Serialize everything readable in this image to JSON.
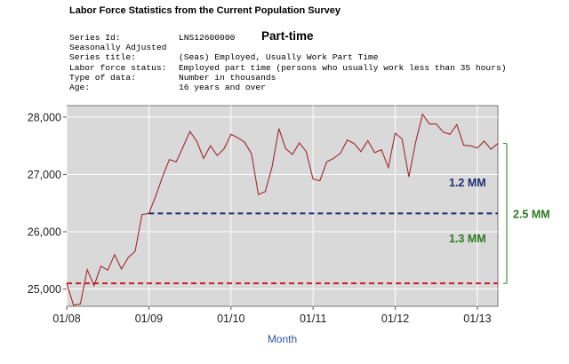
{
  "header": {
    "title": "Labor Force Statistics from the Current Population Survey"
  },
  "series_info": [
    {
      "key": "Series Id:",
      "value": "LNS12600000"
    },
    {
      "key": "Seasonally Adjusted",
      "value": ""
    },
    {
      "key": "Series title:",
      "value": "(Seas) Employed, Usually Work Part Time"
    },
    {
      "key": "Labor force status:",
      "value": "Employed part time (persons who usually work less than 35 hours)"
    },
    {
      "key": "Type of data:",
      "value": "Number in thousands"
    },
    {
      "key": "Age:",
      "value": "16 years and over"
    }
  ],
  "colors": {
    "plot_bg": "#d9d9d9",
    "line": "#a0282d",
    "red_dash": "#cc1f1f",
    "blue_dash": "#1f2f6e",
    "green": "#2a7a1e",
    "axis_label": "#2f55a4"
  },
  "chart_data": {
    "type": "line",
    "title": "Part-time",
    "xlabel": "Month",
    "ylabel": "",
    "x_ticks": [
      "01/08",
      "01/09",
      "01/10",
      "01/11",
      "01/12",
      "01/13"
    ],
    "y_ticks": [
      "25,000",
      "26,000",
      "27,000",
      "28,000"
    ],
    "ylim": [
      24700,
      28200
    ],
    "xlim": [
      "2008-01",
      "2013-04"
    ],
    "grid": true,
    "series": [
      {
        "x": [
          "2008-01",
          "2008-02",
          "2008-03",
          "2008-04",
          "2008-05",
          "2008-06",
          "2008-07",
          "2008-08",
          "2008-09",
          "2008-10",
          "2008-11",
          "2008-12",
          "2009-01",
          "2009-02",
          "2009-03",
          "2009-04",
          "2009-05",
          "2009-06",
          "2009-07",
          "2009-08",
          "2009-09",
          "2009-10",
          "2009-11",
          "2009-12",
          "2010-01",
          "2010-02",
          "2010-03",
          "2010-04",
          "2010-05",
          "2010-06",
          "2010-07",
          "2010-08",
          "2010-09",
          "2010-10",
          "2010-11",
          "2010-12",
          "2011-01",
          "2011-02",
          "2011-03",
          "2011-04",
          "2011-05",
          "2011-06",
          "2011-07",
          "2011-08",
          "2011-09",
          "2011-10",
          "2011-11",
          "2011-12",
          "2012-01",
          "2012-02",
          "2012-03",
          "2012-04",
          "2012-05",
          "2012-06",
          "2012-07",
          "2012-08",
          "2012-09",
          "2012-10",
          "2012-11",
          "2012-12",
          "2013-01",
          "2013-02",
          "2013-03",
          "2013-04"
        ],
        "values": [
          25100,
          24720,
          24740,
          25340,
          25060,
          25400,
          25330,
          25600,
          25350,
          25550,
          25660,
          26300,
          26320,
          26620,
          26960,
          27260,
          27220,
          27480,
          27750,
          27580,
          27280,
          27500,
          27330,
          27450,
          27700,
          27640,
          27560,
          27360,
          26650,
          26700,
          27130,
          27800,
          27450,
          27350,
          27550,
          27400,
          26920,
          26890,
          27220,
          27280,
          27370,
          27600,
          27540,
          27400,
          27590,
          27380,
          27430,
          27120,
          27720,
          27620,
          26960,
          27570,
          28050,
          27880,
          27880,
          27740,
          27700,
          27870,
          27510,
          27500,
          27460,
          27580,
          27440,
          27540
        ]
      }
    ],
    "reference_lines": [
      {
        "value": 25100,
        "style": "red-dash"
      },
      {
        "value": 26320,
        "style": "blue-dash"
      }
    ],
    "annotations": {
      "upper_gap": "1.2 MM",
      "lower_gap": "1.3 MM",
      "total_gap": "2.5 MM"
    }
  }
}
